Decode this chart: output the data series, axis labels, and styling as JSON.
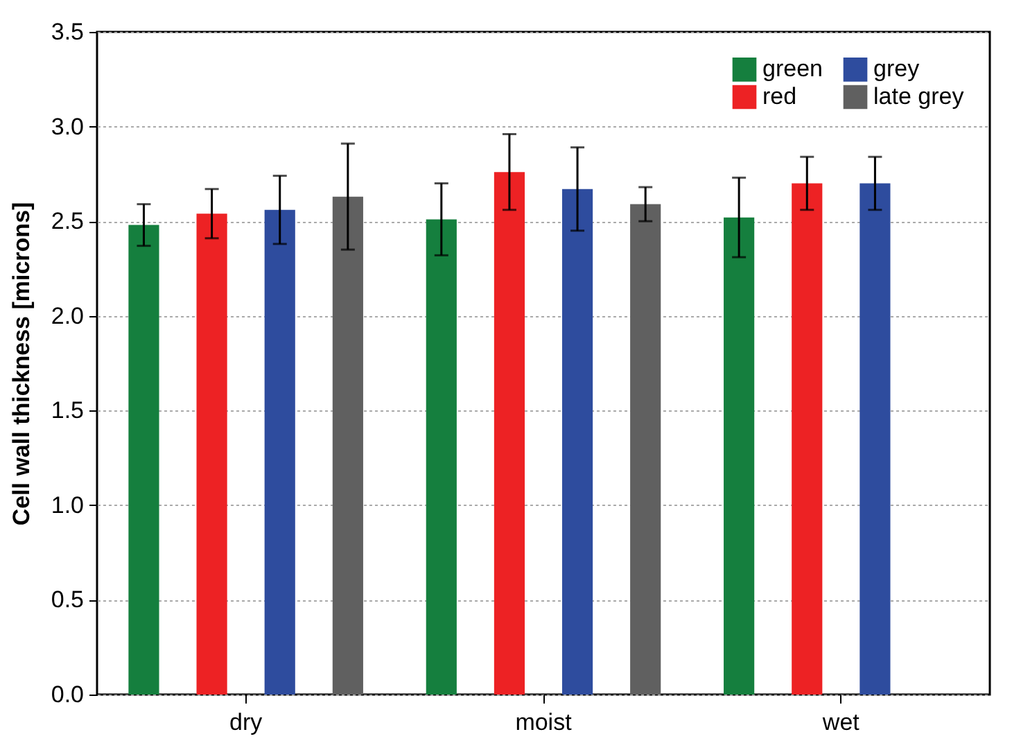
{
  "chart_data": {
    "type": "bar",
    "ylabel": "Cell wall thickness [microns]",
    "categories": [
      "dry",
      "moist",
      "wet"
    ],
    "series": [
      {
        "name": "green",
        "color": "#157f3e",
        "values": [
          2.48,
          2.51,
          2.52
        ],
        "errors": [
          0.11,
          0.19,
          0.21
        ]
      },
      {
        "name": "red",
        "color": "#ed2224",
        "values": [
          2.54,
          2.76,
          2.7
        ],
        "errors": [
          0.13,
          0.2,
          0.14
        ]
      },
      {
        "name": "grey",
        "color": "#2e4c9e",
        "values": [
          2.56,
          2.67,
          2.7
        ],
        "errors": [
          0.18,
          0.22,
          0.14
        ]
      },
      {
        "name": "late grey",
        "color": "#606060",
        "values": [
          2.63,
          2.59,
          null
        ],
        "errors": [
          0.28,
          0.09,
          null
        ]
      }
    ],
    "ylim": [
      0,
      3.5
    ],
    "yticks": [
      {
        "value": 0,
        "label": "0.0"
      },
      0.5,
      {
        "value": 1,
        "label": "1.0"
      },
      1.5,
      {
        "value": 2,
        "label": "2.0"
      },
      2.5,
      {
        "value": 3,
        "label": "3.0"
      },
      3.5
    ],
    "grid": "y",
    "legend": "top right"
  }
}
